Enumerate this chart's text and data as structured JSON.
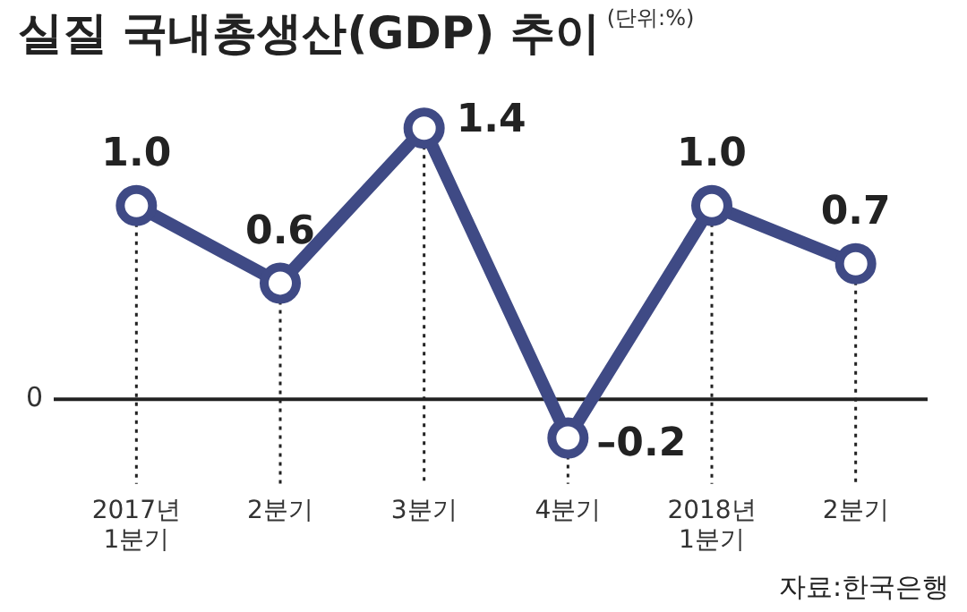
{
  "chart_data": {
    "type": "line",
    "title": "실질 국내총생산(GDP) 추이",
    "subtitle": "(단위:%)",
    "categories": [
      "2017년\n1분기",
      "2분기",
      "3분기",
      "4분기",
      "2018년\n1분기",
      "2분기"
    ],
    "series": [
      {
        "color": "#3f4a85",
        "values": [
          1.0,
          0.6,
          1.4,
          -0.2,
          1.0,
          0.7
        ],
        "value_labels": [
          "1.0",
          "0.6",
          "1.4",
          "–0.2",
          "1.0",
          "0.7"
        ]
      }
    ],
    "grid": "x",
    "marker": "circle",
    "line_style": "solid",
    "legend": false,
    "ref_lines": [
      {
        "axis": "y",
        "value": 0,
        "label": "0",
        "color": "#222222"
      }
    ],
    "annotations": [
      "자료:한국은행"
    ]
  }
}
